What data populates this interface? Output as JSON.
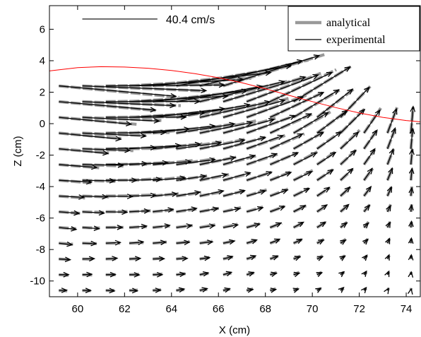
{
  "chart_data": {
    "type": "quiver",
    "xlabel": "X (cm)",
    "ylabel": "Z (cm)",
    "xlim": [
      58.8,
      74.6
    ],
    "ylim": [
      -11,
      7.5
    ],
    "x_ticks": [
      "60",
      "62",
      "64",
      "66",
      "68",
      "70",
      "72",
      "74"
    ],
    "y_ticks": [
      "6",
      "4",
      "2",
      "0",
      "-2",
      "-4",
      "-6",
      "-8",
      "-10"
    ],
    "x_tick_values": [
      60,
      62,
      64,
      66,
      68,
      70,
      72,
      74
    ],
    "y_tick_values": [
      6,
      4,
      2,
      0,
      -2,
      -4,
      -6,
      -8,
      -10
    ],
    "grid": false,
    "scale_arrow": {
      "label": "40.4 cm/s",
      "speed": 40.4,
      "x_start": 60.2,
      "x_end": 63.4,
      "z": 6.65
    },
    "legend": {
      "position": "top-right",
      "entries": [
        {
          "label": "analytical",
          "color": "#999999",
          "style": "thick-dash"
        },
        {
          "label": "experimental",
          "color": "#000000",
          "style": "thin-line"
        }
      ]
    },
    "free_surface": {
      "color": "#ff0000",
      "x": [
        58.8,
        60,
        61,
        62,
        63,
        64,
        65,
        66,
        67,
        68,
        69,
        70,
        71,
        72,
        73,
        74,
        74.6
      ],
      "z": [
        3.35,
        3.56,
        3.62,
        3.6,
        3.52,
        3.38,
        3.18,
        2.92,
        2.6,
        2.22,
        1.8,
        1.4,
        1.02,
        0.68,
        0.4,
        0.2,
        0.12
      ]
    },
    "grid_x": [
      59.2,
      60.2,
      61.2,
      62.2,
      63.2,
      64.2,
      65.2,
      66.2,
      67.2,
      68.2,
      69.2,
      70.2,
      71.2,
      72.2,
      73.2,
      74.2
    ],
    "grid_z": [
      2.4,
      1.4,
      0.4,
      -0.6,
      -1.6,
      -2.6,
      -3.6,
      -4.6,
      -5.6,
      -6.6,
      -7.6,
      -8.6,
      -9.6,
      -10.6
    ],
    "vector_scale_cm_per_cm_s": 0.0792
  }
}
